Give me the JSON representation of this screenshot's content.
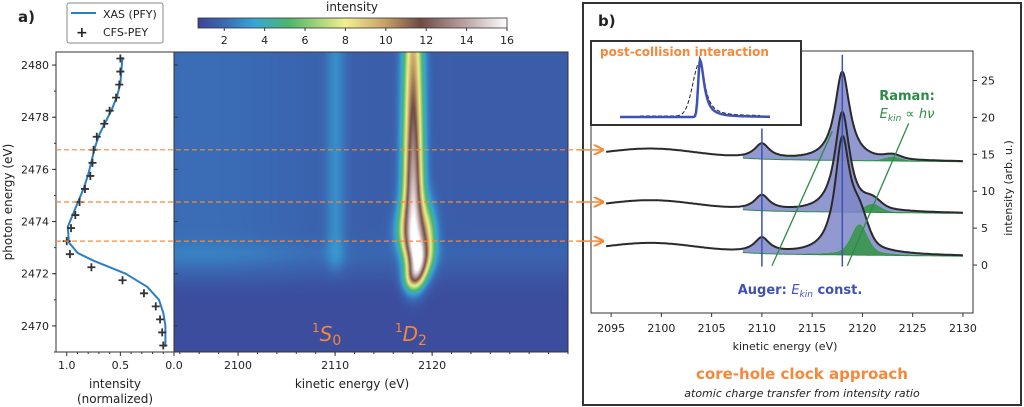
{
  "panel_a": {
    "label": "a)",
    "legend": {
      "line": "XAS (PFY)",
      "marker": "CFS-PEY"
    },
    "colorbar": {
      "title": "intensity",
      "ticks": [
        2,
        4,
        6,
        8,
        10,
        12,
        14,
        16
      ],
      "range": [
        0.7,
        16
      ]
    },
    "peak_labels": [
      {
        "term": "1",
        "sym": "S",
        "sub": "0"
      },
      {
        "term": "1",
        "sym": "D",
        "sub": "2"
      }
    ],
    "ylabel": "photon energy (eV)",
    "xlabel_side": [
      "intensity",
      "(normalized)"
    ],
    "xlabel_map": "kinetic energy (eV)",
    "selected_photon_energies": [
      2476.75,
      2474.75,
      2473.25
    ]
  },
  "panel_b": {
    "label": "b)",
    "inset_title": "post-collision interaction",
    "raman_title": "Raman:",
    "raman_formula": {
      "E": "E",
      "sub": "kin",
      "rest": " ∝ hν"
    },
    "auger_title": "Auger: ",
    "auger_formula": {
      "E": "E",
      "sub": "kin",
      "rest": " const."
    },
    "xlabel": "kinetic energy (eV)",
    "ylabel": "intensity (arb. u.)",
    "footer_title": "core-hole clock approach",
    "footer_subtitle": "atomic charge transfer from intensity ratio"
  },
  "colors": {
    "orange": "#f5883a",
    "blue": "#3f51b5",
    "green": "#2e8b47",
    "xas": "#2a7fc4",
    "fill_auger": "#7f86c8"
  },
  "chart_data": [
    {
      "type": "line",
      "panel": "a-left",
      "xlabel": "intensity\n(normalized)",
      "ylabel": "photon energy (eV)",
      "xlim": [
        1.1,
        0.0
      ],
      "ylim": [
        2469,
        2480.5
      ],
      "xticks": [
        1.0,
        0.5,
        0.0
      ],
      "yticks": [
        2470,
        2472,
        2474,
        2476,
        2478,
        2480
      ],
      "series": [
        {
          "name": "XAS (PFY)",
          "style": "line",
          "x": [
            0.48,
            0.49,
            0.5,
            0.53,
            0.58,
            0.64,
            0.7,
            0.74,
            0.77,
            0.8,
            0.84,
            0.89,
            0.94,
            0.99,
            0.98,
            0.9,
            0.75,
            0.45,
            0.25,
            0.14,
            0.1,
            0.08,
            0.08,
            0.08
          ],
          "y": [
            2480.3,
            2479.8,
            2479.3,
            2478.8,
            2478.3,
            2477.8,
            2477.3,
            2476.8,
            2476.3,
            2475.8,
            2475.3,
            2474.8,
            2474.3,
            2473.8,
            2473.2,
            2472.8,
            2472.5,
            2472.0,
            2471.5,
            2471.0,
            2470.5,
            2470.0,
            2469.6,
            2469.2
          ]
        },
        {
          "name": "CFS-PEY",
          "style": "plus",
          "x": [
            0.5,
            0.5,
            0.51,
            0.54,
            0.6,
            0.65,
            0.72,
            0.75,
            0.76,
            0.78,
            0.83,
            0.88,
            0.92,
            0.96,
            1.0,
            0.97,
            0.77,
            0.48,
            0.28,
            0.17,
            0.13,
            0.11,
            0.1
          ],
          "y": [
            2480.25,
            2479.75,
            2479.25,
            2478.75,
            2478.25,
            2477.75,
            2477.25,
            2476.75,
            2476.25,
            2475.75,
            2475.25,
            2474.75,
            2474.25,
            2473.75,
            2473.25,
            2472.75,
            2472.25,
            2471.75,
            2471.25,
            2470.75,
            2470.25,
            2469.75,
            2469.25
          ]
        }
      ]
    },
    {
      "type": "heatmap",
      "panel": "a-map",
      "xlabel": "kinetic energy (eV)",
      "xlim": [
        2093.4,
        2134
      ],
      "ylim": [
        2469,
        2480.5
      ],
      "xticks": [
        2100,
        2110,
        2120
      ],
      "colorbar_label": "intensity",
      "features": [
        {
          "name": "1S0",
          "kinetic_energy": 2110,
          "max_intensity": 3.5
        },
        {
          "name": "1D2",
          "kinetic_energy": 2118,
          "max_intensity": 16
        }
      ]
    },
    {
      "type": "line",
      "panel": "b",
      "xlabel": "kinetic energy (eV)",
      "ylabel": "intensity (arb. u.)",
      "xlim": [
        2093,
        2131
      ],
      "ylim": [
        -6.5,
        29
      ],
      "xticks": [
        2095,
        2100,
        2105,
        2110,
        2115,
        2120,
        2125,
        2130
      ],
      "yticks": [
        0,
        5,
        10,
        15,
        20,
        25
      ],
      "auger_lines": [
        2110,
        2118
      ],
      "raman_lines": [
        {
          "from": [
            2111.0,
            -0.1
          ],
          "to": [
            2117.0,
            18.1
          ]
        },
        {
          "from": [
            2118.5,
            -0.1
          ],
          "to": [
            2124.6,
            19.2
          ]
        }
      ],
      "spectra": [
        {
          "photon_energy": 2476.75,
          "offset": 14,
          "auger_2110": 2.0,
          "auger_2118": 12.0,
          "raman_position": 2123.0,
          "raman_height": 0.5
        },
        {
          "photon_energy": 2474.75,
          "offset": 7,
          "auger_2110": 2.0,
          "auger_2118": 13.5,
          "raman_position": 2121.0,
          "raman_height": 1.0
        },
        {
          "photon_energy": 2473.25,
          "offset": 1.2,
          "auger_2110": 2.0,
          "auger_2118": 15.3,
          "raman_position": 2119.7,
          "raman_height": 3.5
        }
      ]
    }
  ]
}
